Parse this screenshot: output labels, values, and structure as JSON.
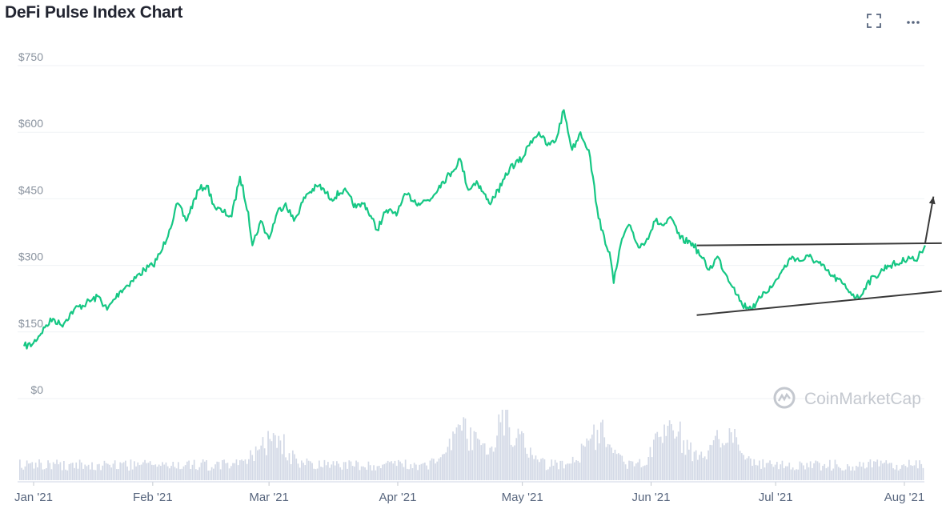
{
  "header": {
    "title": "DeFi Pulse Index Chart",
    "expand_icon": "fullscreen-icon",
    "more_icon": "more-horizontal-icon"
  },
  "watermark": {
    "text": "CoinMarketCap",
    "icon": "coinmarketcap-logo-icon"
  },
  "colors": {
    "price_line": "#16c784",
    "volume": "#d3d9e6",
    "grid": "#eff2f5",
    "annotation": "#3a3a3a"
  },
  "chart_data": {
    "type": "line",
    "title": "DeFi Pulse Index Chart",
    "y_ticks": [
      "$0",
      "$150",
      "$300",
      "$450",
      "$600",
      "$750"
    ],
    "ylim": [
      0,
      750
    ],
    "x_ticks": [
      "Jan '21",
      "Feb '21",
      "Mar '21",
      "Apr '21",
      "May '21",
      "Jun '21",
      "Jul '21",
      "Aug '21"
    ],
    "grid": true,
    "price_series": {
      "name": "Price",
      "points": [
        [
          "2021-01-01",
          118
        ],
        [
          "2021-01-03",
          122
        ],
        [
          "2021-01-06",
          160
        ],
        [
          "2021-01-08",
          180
        ],
        [
          "2021-01-10",
          165
        ],
        [
          "2021-01-13",
          200
        ],
        [
          "2021-01-16",
          215
        ],
        [
          "2021-01-19",
          230
        ],
        [
          "2021-01-21",
          200
        ],
        [
          "2021-01-24",
          240
        ],
        [
          "2021-01-27",
          265
        ],
        [
          "2021-01-30",
          290
        ],
        [
          "2021-02-01",
          300
        ],
        [
          "2021-02-03",
          330
        ],
        [
          "2021-02-05",
          380
        ],
        [
          "2021-02-07",
          440
        ],
        [
          "2021-02-09",
          400
        ],
        [
          "2021-02-12",
          470
        ],
        [
          "2021-02-14",
          480
        ],
        [
          "2021-02-16",
          430
        ],
        [
          "2021-02-18",
          420
        ],
        [
          "2021-02-20",
          410
        ],
        [
          "2021-02-22",
          500
        ],
        [
          "2021-02-24",
          420
        ],
        [
          "2021-02-25",
          345
        ],
        [
          "2021-02-27",
          400
        ],
        [
          "2021-03-01",
          360
        ],
        [
          "2021-03-03",
          420
        ],
        [
          "2021-03-05",
          440
        ],
        [
          "2021-03-07",
          400
        ],
        [
          "2021-03-10",
          460
        ],
        [
          "2021-03-13",
          480
        ],
        [
          "2021-03-16",
          450
        ],
        [
          "2021-03-19",
          470
        ],
        [
          "2021-03-22",
          430
        ],
        [
          "2021-03-24",
          440
        ],
        [
          "2021-03-27",
          380
        ],
        [
          "2021-03-29",
          420
        ],
        [
          "2021-04-01",
          420
        ],
        [
          "2021-04-03",
          460
        ],
        [
          "2021-04-06",
          440
        ],
        [
          "2021-04-09",
          450
        ],
        [
          "2021-04-11",
          480
        ],
        [
          "2021-04-14",
          510
        ],
        [
          "2021-04-16",
          540
        ],
        [
          "2021-04-18",
          470
        ],
        [
          "2021-04-20",
          490
        ],
        [
          "2021-04-23",
          440
        ],
        [
          "2021-04-26",
          480
        ],
        [
          "2021-04-28",
          520
        ],
        [
          "2021-05-01",
          540
        ],
        [
          "2021-05-03",
          580
        ],
        [
          "2021-05-05",
          600
        ],
        [
          "2021-05-07",
          570
        ],
        [
          "2021-05-09",
          580
        ],
        [
          "2021-05-11",
          650
        ],
        [
          "2021-05-13",
          560
        ],
        [
          "2021-05-15",
          600
        ],
        [
          "2021-05-17",
          560
        ],
        [
          "2021-05-19",
          430
        ],
        [
          "2021-05-20",
          380
        ],
        [
          "2021-05-22",
          330
        ],
        [
          "2021-05-23",
          260
        ],
        [
          "2021-05-25",
          360
        ],
        [
          "2021-05-27",
          390
        ],
        [
          "2021-05-29",
          340
        ],
        [
          "2021-05-31",
          360
        ],
        [
          "2021-06-02",
          400
        ],
        [
          "2021-06-04",
          390
        ],
        [
          "2021-06-06",
          405
        ],
        [
          "2021-06-08",
          360
        ],
        [
          "2021-06-11",
          350
        ],
        [
          "2021-06-13",
          320
        ],
        [
          "2021-06-15",
          290
        ],
        [
          "2021-06-17",
          320
        ],
        [
          "2021-06-19",
          280
        ],
        [
          "2021-06-21",
          250
        ],
        [
          "2021-06-23",
          210
        ],
        [
          "2021-06-26",
          205
        ],
        [
          "2021-06-28",
          240
        ],
        [
          "2021-06-30",
          250
        ],
        [
          "2021-07-02",
          280
        ],
        [
          "2021-07-05",
          320
        ],
        [
          "2021-07-07",
          310
        ],
        [
          "2021-07-09",
          320
        ],
        [
          "2021-07-12",
          300
        ],
        [
          "2021-07-14",
          280
        ],
        [
          "2021-07-17",
          260
        ],
        [
          "2021-07-19",
          240
        ],
        [
          "2021-07-21",
          225
        ],
        [
          "2021-07-23",
          260
        ],
        [
          "2021-07-25",
          275
        ],
        [
          "2021-07-28",
          300
        ],
        [
          "2021-07-31",
          305
        ],
        [
          "2021-08-02",
          320
        ],
        [
          "2021-08-04",
          310
        ],
        [
          "2021-08-05",
          330
        ],
        [
          "2021-08-06",
          345
        ]
      ]
    },
    "volume_series": {
      "name": "Volume",
      "shown_as": "bars"
    },
    "annotations": [
      {
        "type": "trendline",
        "label": "upper",
        "points": [
          [
            "2021-06-12",
            345
          ],
          [
            "2021-08-10",
            350
          ]
        ]
      },
      {
        "type": "trendline",
        "label": "lower",
        "points": [
          [
            "2021-06-12",
            188
          ],
          [
            "2021-08-10",
            242
          ]
        ]
      },
      {
        "type": "arrow",
        "points": [
          [
            "2021-08-06",
            350
          ],
          [
            "2021-08-08",
            455
          ]
        ]
      }
    ]
  }
}
